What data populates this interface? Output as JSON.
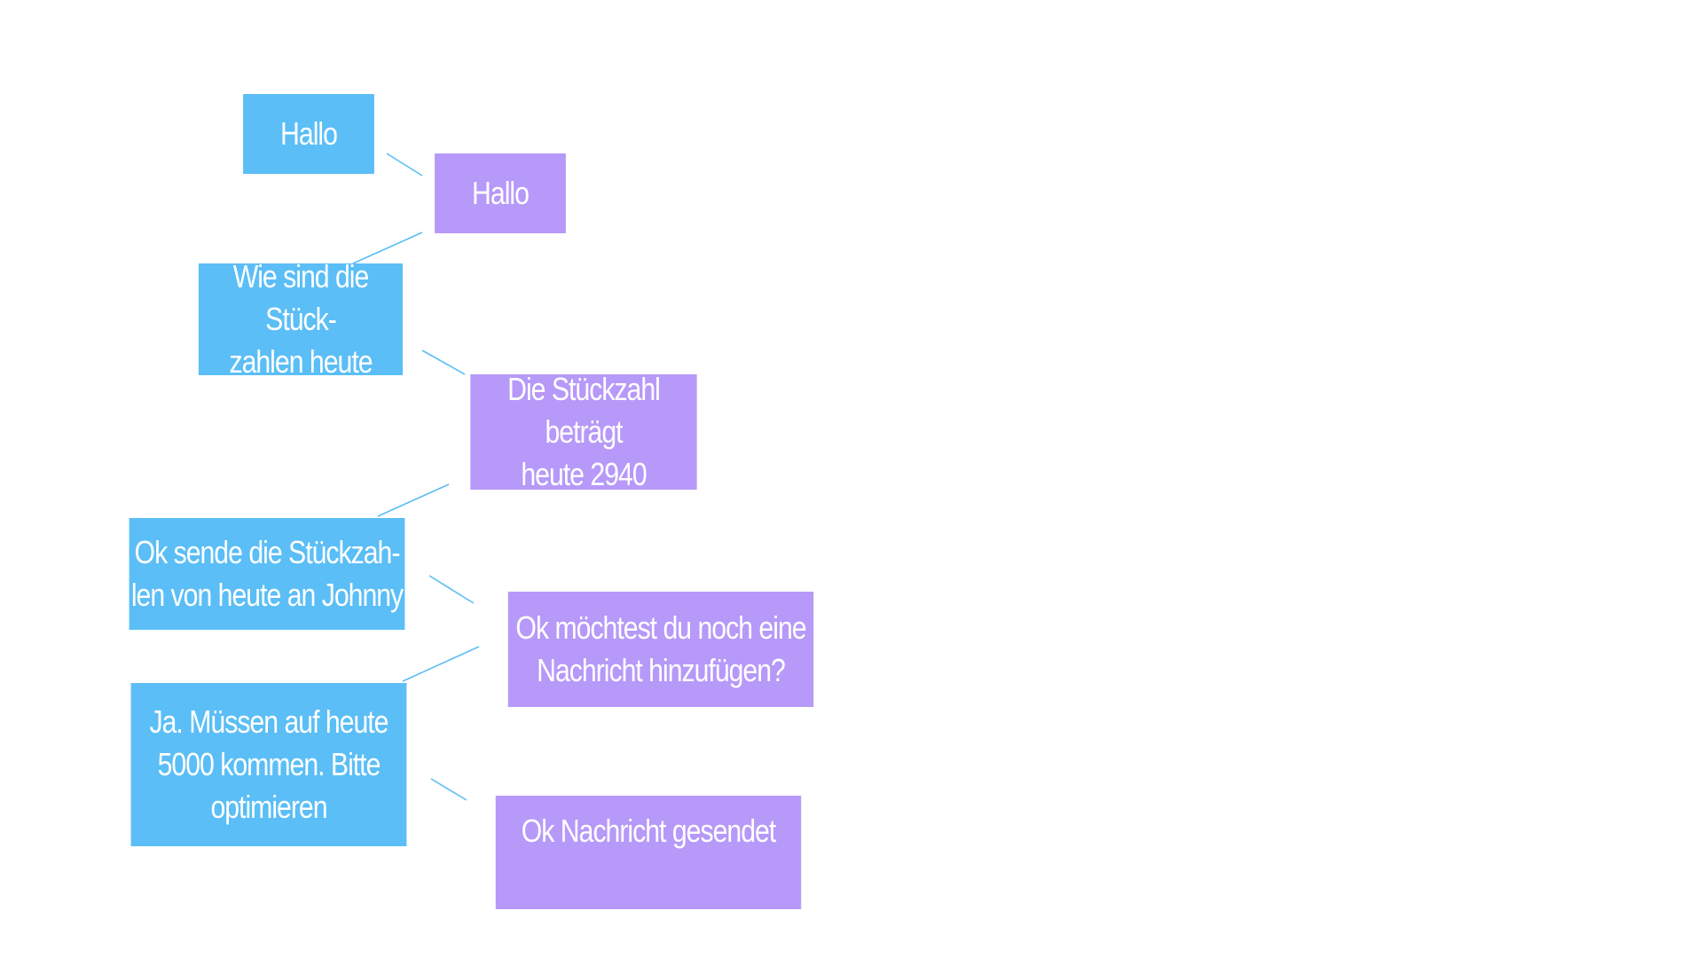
{
  "diagram": {
    "title": "",
    "colors": {
      "user": "#5bbef6",
      "bot": "#b699f8",
      "connector": "#5bbef6",
      "text": "#ffffff",
      "background": "#ffffff"
    },
    "messages": [
      {
        "speaker": "user",
        "text": "Hallo"
      },
      {
        "speaker": "bot",
        "text": "Hallo"
      },
      {
        "speaker": "user",
        "text": "Wie sind die Stück-\nzahlen heute"
      },
      {
        "speaker": "bot",
        "text": "Die Stückzahl beträgt\nheute 2940"
      },
      {
        "speaker": "user",
        "text": "Ok sende die Stückzah-\nlen von heute an Johnny"
      },
      {
        "speaker": "bot",
        "text": "Ok möchtest du noch eine\nNachricht hinzufügen?"
      },
      {
        "speaker": "user",
        "text": "Ja. Müssen auf heute\n5000 kommen. Bitte\noptimieren"
      },
      {
        "speaker": "bot",
        "text": "Ok Nachricht gesendet"
      }
    ]
  }
}
